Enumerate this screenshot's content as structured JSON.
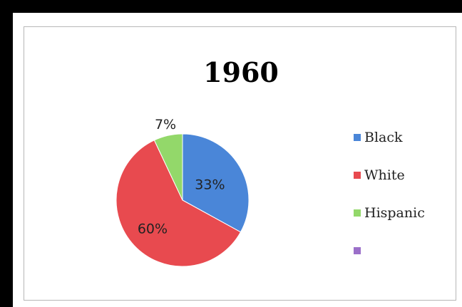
{
  "chart_data": {
    "type": "pie",
    "title": "1960",
    "categories": [
      "Black",
      "White",
      "Hispanic",
      ""
    ],
    "values": [
      33,
      60,
      7,
      0
    ],
    "data_labels": [
      "33%",
      "60%",
      "7%",
      ""
    ],
    "colors": [
      "#4a86d8",
      "#e84a4f",
      "#93d86a",
      "#9b6fc9"
    ],
    "legend_position": "right"
  }
}
